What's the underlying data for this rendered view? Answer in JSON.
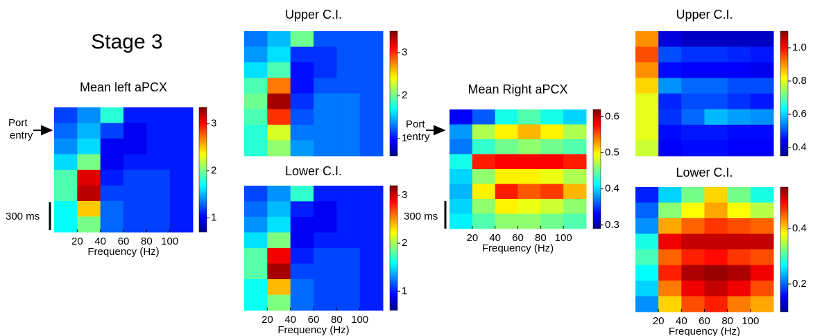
{
  "labels": {
    "stage": "Stage 3",
    "port_left": [
      "Port",
      "entry"
    ],
    "scale_left": "300 ms",
    "port_right": [
      "Port",
      "entry"
    ],
    "scale_right": "300 ms"
  },
  "chart_data": [
    {
      "type": "heatmap",
      "title": "Mean left aPCX",
      "xlabel": "Frequency (Hz)",
      "xlim": [
        0,
        120
      ],
      "xticks": [
        20,
        40,
        60,
        80,
        100
      ],
      "clim": [
        0.7,
        3.35
      ],
      "cticks": [
        1,
        2,
        3
      ],
      "z": [
        [
          1.2,
          1.4,
          1.8,
          1.1,
          1.1,
          1.1
        ],
        [
          1.3,
          1.5,
          1.2,
          1.0,
          1.1,
          1.1
        ],
        [
          1.4,
          1.6,
          1.0,
          1.0,
          1.1,
          1.1
        ],
        [
          1.6,
          2.0,
          1.0,
          1.1,
          1.1,
          1.1
        ],
        [
          1.9,
          3.1,
          1.1,
          1.2,
          1.2,
          1.1
        ],
        [
          1.9,
          3.2,
          1.2,
          1.2,
          1.2,
          1.1
        ],
        [
          1.7,
          2.5,
          1.3,
          1.2,
          1.2,
          1.1
        ],
        [
          1.7,
          2.0,
          1.3,
          1.2,
          1.2,
          1.1
        ]
      ]
    },
    {
      "type": "heatmap",
      "title": "Upper C.I.",
      "xlim": [
        0,
        120
      ],
      "xticks": [],
      "clim": [
        0.6,
        3.5
      ],
      "cticks": [
        1,
        2,
        3
      ],
      "z": [
        [
          1.3,
          1.5,
          2.0,
          1.2,
          1.2,
          1.2
        ],
        [
          1.4,
          1.6,
          1.1,
          1.1,
          1.2,
          1.2
        ],
        [
          1.6,
          1.9,
          1.0,
          1.1,
          1.2,
          1.2
        ],
        [
          1.9,
          2.8,
          1.0,
          1.2,
          1.2,
          1.2
        ],
        [
          2.0,
          3.4,
          1.1,
          1.3,
          1.3,
          1.2
        ],
        [
          1.9,
          3.0,
          1.2,
          1.3,
          1.3,
          1.2
        ],
        [
          1.8,
          2.3,
          1.3,
          1.3,
          1.3,
          1.2
        ],
        [
          1.8,
          2.1,
          1.4,
          1.3,
          1.3,
          1.2
        ]
      ]
    },
    {
      "type": "heatmap",
      "title": "Lower C.I.",
      "xlabel": "Frequency (Hz)",
      "xlim": [
        0,
        120
      ],
      "xticks": [
        20,
        40,
        60,
        80,
        100
      ],
      "clim": [
        0.6,
        3.2
      ],
      "cticks": [
        1,
        2,
        3
      ],
      "z": [
        [
          1.1,
          1.3,
          1.7,
          1.0,
          1.0,
          1.0
        ],
        [
          1.2,
          1.4,
          1.0,
          0.9,
          1.0,
          1.0
        ],
        [
          1.3,
          1.5,
          0.9,
          0.9,
          1.0,
          1.0
        ],
        [
          1.5,
          1.9,
          0.9,
          1.0,
          1.0,
          1.0
        ],
        [
          1.8,
          2.9,
          1.0,
          1.1,
          1.1,
          1.0
        ],
        [
          1.8,
          3.1,
          1.1,
          1.1,
          1.1,
          1.0
        ],
        [
          1.6,
          2.4,
          1.2,
          1.1,
          1.1,
          1.0
        ],
        [
          1.6,
          1.9,
          1.2,
          1.1,
          1.1,
          1.0
        ]
      ]
    },
    {
      "type": "heatmap",
      "title": "Mean Right aPCX",
      "xlabel": "Frequency (Hz)",
      "xlim": [
        0,
        120
      ],
      "xticks": [
        20,
        40,
        60,
        80,
        100
      ],
      "clim": [
        0.29,
        0.62
      ],
      "cticks": [
        0.3,
        0.4,
        0.5,
        0.6
      ],
      "z": [
        [
          0.33,
          0.36,
          0.42,
          0.44,
          0.42,
          0.4
        ],
        [
          0.38,
          0.47,
          0.5,
          0.52,
          0.5,
          0.47
        ],
        [
          0.37,
          0.43,
          0.45,
          0.46,
          0.45,
          0.44
        ],
        [
          0.42,
          0.57,
          0.58,
          0.58,
          0.58,
          0.57
        ],
        [
          0.4,
          0.46,
          0.5,
          0.5,
          0.49,
          0.47
        ],
        [
          0.39,
          0.5,
          0.57,
          0.55,
          0.56,
          0.52
        ],
        [
          0.4,
          0.46,
          0.5,
          0.49,
          0.48,
          0.46
        ],
        [
          0.41,
          0.44,
          0.46,
          0.46,
          0.45,
          0.44
        ]
      ]
    },
    {
      "type": "heatmap",
      "title": "Upper C.I.",
      "xlim": [
        0,
        120
      ],
      "xticks": [],
      "clim": [
        0.35,
        1.1
      ],
      "cticks": [
        0.4,
        0.6,
        0.8,
        {
          "value": 1,
          "label": "1.0"
        }
      ],
      "z": [
        [
          0.9,
          0.42,
          0.4,
          0.4,
          0.4,
          0.4
        ],
        [
          0.95,
          0.5,
          0.48,
          0.48,
          0.47,
          0.46
        ],
        [
          0.9,
          0.45,
          0.44,
          0.44,
          0.44,
          0.43
        ],
        [
          0.85,
          0.55,
          0.52,
          0.52,
          0.5,
          0.5
        ],
        [
          0.8,
          0.47,
          0.5,
          0.5,
          0.48,
          0.46
        ],
        [
          0.8,
          0.48,
          0.52,
          0.58,
          0.56,
          0.55
        ],
        [
          0.8,
          0.45,
          0.46,
          0.46,
          0.45,
          0.45
        ],
        [
          0.78,
          0.44,
          0.45,
          0.45,
          0.44,
          0.44
        ]
      ]
    },
    {
      "type": "heatmap",
      "title": "Lower C.I.",
      "xlabel": "Frequency (Hz)",
      "xlim": [
        0,
        120
      ],
      "xticks": [
        20,
        40,
        60,
        80,
        100
      ],
      "clim": [
        0.1,
        0.55
      ],
      "cticks": [
        0.2,
        0.4
      ],
      "z": [
        [
          0.17,
          0.25,
          0.32,
          0.4,
          0.32,
          0.28
        ],
        [
          0.2,
          0.33,
          0.38,
          0.42,
          0.38,
          0.35
        ],
        [
          0.22,
          0.42,
          0.45,
          0.47,
          0.46,
          0.45
        ],
        [
          0.28,
          0.5,
          0.52,
          0.52,
          0.52,
          0.52
        ],
        [
          0.3,
          0.45,
          0.48,
          0.49,
          0.47,
          0.46
        ],
        [
          0.27,
          0.48,
          0.53,
          0.54,
          0.53,
          0.5
        ],
        [
          0.25,
          0.44,
          0.5,
          0.52,
          0.5,
          0.46
        ],
        [
          0.22,
          0.4,
          0.46,
          0.48,
          0.44,
          0.42
        ]
      ]
    }
  ]
}
